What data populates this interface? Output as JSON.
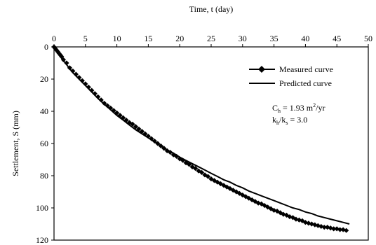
{
  "chart_data": {
    "type": "scatter",
    "xlabel": "Time, t (day)",
    "ylabel": "Settlement, S (mm)",
    "xlim": [
      0,
      50
    ],
    "ylim": [
      0,
      120
    ],
    "x_axis_position": "top",
    "y_inverted": true,
    "x_ticks": [
      0,
      5,
      10,
      15,
      20,
      25,
      30,
      35,
      40,
      45,
      50
    ],
    "y_ticks": [
      0,
      20,
      40,
      60,
      80,
      100,
      120
    ],
    "grid": false,
    "legend_position": "top-right",
    "series": [
      {
        "name": "Measured curve",
        "style": "diamond-markers",
        "color": "#000000",
        "points": [
          [
            0,
            0
          ],
          [
            0.2,
            1
          ],
          [
            0.4,
            2
          ],
          [
            0.6,
            3
          ],
          [
            0.8,
            4
          ],
          [
            1.0,
            5
          ],
          [
            1.2,
            6
          ],
          [
            1.5,
            8
          ],
          [
            2,
            10
          ],
          [
            2.5,
            13
          ],
          [
            3,
            15
          ],
          [
            3.5,
            17
          ],
          [
            4,
            19
          ],
          [
            4.5,
            21
          ],
          [
            5,
            23
          ],
          [
            5.5,
            25
          ],
          [
            6,
            27
          ],
          [
            6.5,
            29
          ],
          [
            7,
            31
          ],
          [
            7.5,
            33
          ],
          [
            8,
            35
          ],
          [
            8.5,
            36.5
          ],
          [
            9,
            38
          ],
          [
            9.5,
            39.5
          ],
          [
            10,
            41
          ],
          [
            10.5,
            42.5
          ],
          [
            11,
            44
          ],
          [
            11.5,
            45.5
          ],
          [
            12,
            47
          ],
          [
            12.5,
            48
          ],
          [
            13,
            49.5
          ],
          [
            13.5,
            51
          ],
          [
            14,
            52.5
          ],
          [
            14.5,
            54
          ],
          [
            15,
            55.5
          ],
          [
            15.5,
            57
          ],
          [
            16,
            58.5
          ],
          [
            16.5,
            60
          ],
          [
            17,
            61.5
          ],
          [
            17.5,
            63
          ],
          [
            18,
            64.5
          ],
          [
            18.5,
            65.5
          ],
          [
            19,
            67
          ],
          [
            19.5,
            68
          ],
          [
            20,
            69.5
          ],
          [
            20.5,
            70.5
          ],
          [
            21,
            72
          ],
          [
            21.5,
            73
          ],
          [
            22,
            74.5
          ],
          [
            22.5,
            75.5
          ],
          [
            23,
            77
          ],
          [
            23.5,
            78
          ],
          [
            24,
            79.5
          ],
          [
            24.5,
            80.5
          ],
          [
            25,
            82
          ],
          [
            25.5,
            83
          ],
          [
            26,
            84
          ],
          [
            26.5,
            85
          ],
          [
            27,
            86
          ],
          [
            27.5,
            87
          ],
          [
            28,
            88
          ],
          [
            28.5,
            89
          ],
          [
            29,
            90
          ],
          [
            29.5,
            91
          ],
          [
            30,
            92
          ],
          [
            30.5,
            93
          ],
          [
            31,
            94
          ],
          [
            31.5,
            95
          ],
          [
            32,
            96
          ],
          [
            32.5,
            97
          ],
          [
            33,
            97.5
          ],
          [
            33.5,
            98.5
          ],
          [
            34,
            99.5
          ],
          [
            34.5,
            100.5
          ],
          [
            35,
            101.5
          ],
          [
            35.5,
            102
          ],
          [
            36,
            103
          ],
          [
            36.5,
            104
          ],
          [
            37,
            104.5
          ],
          [
            37.5,
            105.5
          ],
          [
            38,
            106
          ],
          [
            38.5,
            107
          ],
          [
            39,
            107.5
          ],
          [
            39.5,
            108
          ],
          [
            40,
            109
          ],
          [
            40.5,
            109.5
          ],
          [
            41,
            110
          ],
          [
            41.5,
            110.5
          ],
          [
            42,
            111
          ],
          [
            42.5,
            111.5
          ],
          [
            43,
            112
          ],
          [
            43.5,
            112
          ],
          [
            44,
            112.5
          ],
          [
            44.5,
            113
          ],
          [
            45,
            113
          ],
          [
            45.5,
            113.5
          ],
          [
            46,
            113.5
          ],
          [
            46.5,
            114
          ]
        ]
      },
      {
        "name": "Predicted curve",
        "style": "solid-line",
        "color": "#000000",
        "points": [
          [
            0,
            0
          ],
          [
            0.5,
            3
          ],
          [
            1,
            6
          ],
          [
            2,
            11
          ],
          [
            3,
            16
          ],
          [
            4,
            20
          ],
          [
            5,
            24
          ],
          [
            6,
            28
          ],
          [
            7,
            32
          ],
          [
            8,
            35.5
          ],
          [
            9,
            39
          ],
          [
            10,
            42.5
          ],
          [
            11,
            45.5
          ],
          [
            12,
            48.5
          ],
          [
            13,
            51.5
          ],
          [
            14,
            54
          ],
          [
            15,
            56.5
          ],
          [
            16,
            59
          ],
          [
            17,
            61.5
          ],
          [
            18,
            64
          ],
          [
            19,
            66
          ],
          [
            20,
            68.5
          ],
          [
            21,
            70.5
          ],
          [
            22,
            72.5
          ],
          [
            23,
            74.5
          ],
          [
            24,
            76.5
          ],
          [
            25,
            78.5
          ],
          [
            26,
            80.5
          ],
          [
            27,
            82.5
          ],
          [
            28,
            84
          ],
          [
            29,
            86
          ],
          [
            30,
            87.5
          ],
          [
            31,
            89.5
          ],
          [
            32,
            91
          ],
          [
            33,
            92.5
          ],
          [
            34,
            94
          ],
          [
            35,
            95.5
          ],
          [
            36,
            97
          ],
          [
            37,
            98.5
          ],
          [
            38,
            100
          ],
          [
            39,
            101
          ],
          [
            40,
            102.5
          ],
          [
            41,
            103.5
          ],
          [
            42,
            105
          ],
          [
            43,
            106
          ],
          [
            44,
            107
          ],
          [
            45,
            108
          ],
          [
            46,
            109
          ],
          [
            47,
            110
          ]
        ]
      }
    ],
    "annotations": [
      {
        "parts": [
          "C",
          "h",
          " = 1.93 m",
          "2",
          "/yr"
        ]
      },
      {
        "parts": [
          "k",
          "h",
          "/k",
          "s",
          " = 3.0"
        ]
      }
    ]
  }
}
